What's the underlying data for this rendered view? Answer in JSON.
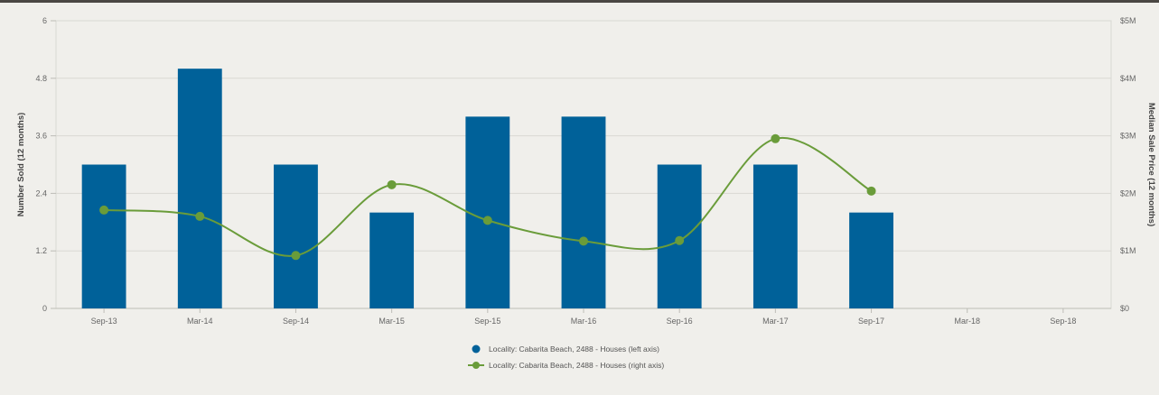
{
  "chart_data": {
    "type": "bar",
    "categories": [
      "Sep-13",
      "Mar-14",
      "Sep-14",
      "Mar-15",
      "Sep-15",
      "Mar-16",
      "Sep-16",
      "Mar-17",
      "Sep-17",
      "Mar-18",
      "Sep-18"
    ],
    "series": [
      {
        "name": "Locality: Cabarita Beach, 2488 - Houses (left axis)",
        "type": "bar",
        "axis": "left",
        "color": "#006199",
        "values": [
          3,
          5,
          3,
          2,
          4,
          4,
          3,
          3,
          2,
          null,
          null
        ]
      },
      {
        "name": "Locality: Cabarita Beach, 2488 - Houses (right axis)",
        "type": "line",
        "axis": "right",
        "color": "#6a9c3a",
        "values": [
          1710000,
          1600000,
          920000,
          2150000,
          1530000,
          1170000,
          1180000,
          2950000,
          2040000,
          null,
          null
        ]
      }
    ],
    "ylabel": "Number Sold (12 months)",
    "y2label": "Median Sale Price (12 months)",
    "ylim": [
      0,
      6
    ],
    "y2lim": [
      0,
      5000000
    ],
    "yticks": [
      "0",
      "1.2",
      "2.4",
      "3.6",
      "4.8",
      "6"
    ],
    "y2ticks": [
      "$0",
      "$1M",
      "$2M",
      "$3M",
      "$4M",
      "$5M"
    ],
    "grid": true,
    "legend_position": "bottom-center"
  }
}
